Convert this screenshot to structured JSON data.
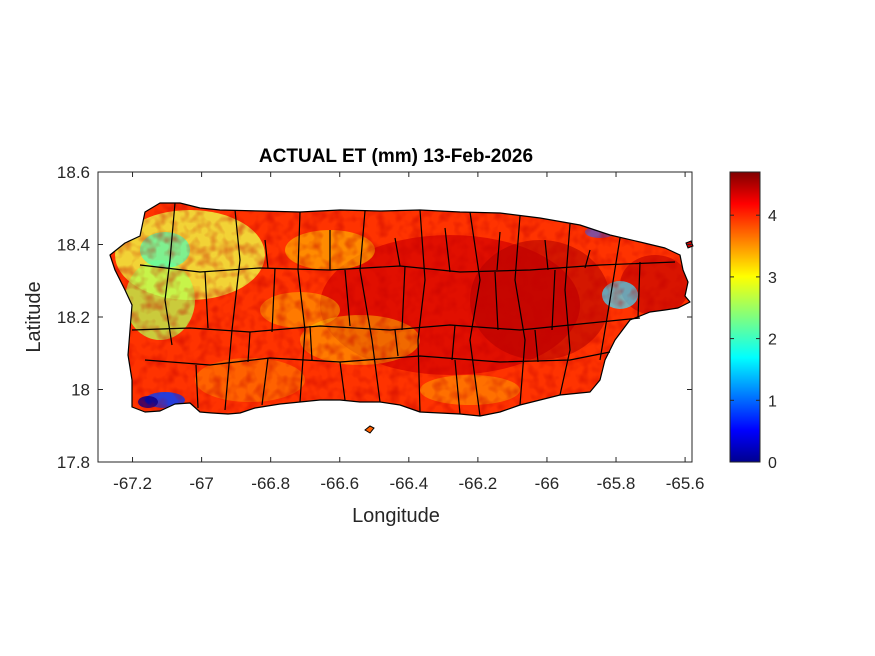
{
  "chart_data": {
    "type": "heatmap",
    "title": "ACTUAL ET (mm) 13-Feb-2026",
    "xlabel": "Longitude",
    "ylabel": "Latitude",
    "xlim": [
      -67.3,
      -65.58
    ],
    "ylim": [
      17.8,
      18.6
    ],
    "x_ticks": [
      -67.2,
      -67,
      -66.8,
      -66.6,
      -66.4,
      -66.2,
      -66,
      -65.8,
      -65.6
    ],
    "x_tick_labels": [
      "-67.2",
      "-67",
      "-66.8",
      "-66.6",
      "-66.4",
      "-66.2",
      "-66",
      "-65.8",
      "-65.6"
    ],
    "y_ticks": [
      17.8,
      18,
      18.2,
      18.4,
      18.6
    ],
    "y_tick_labels": [
      "17.8",
      "18",
      "18.2",
      "18.4",
      "18.6"
    ],
    "colorbar": {
      "colormap": "jet",
      "range": [
        0,
        4.7
      ],
      "ticks": [
        0,
        1,
        2,
        3,
        4
      ],
      "tick_labels": [
        "0",
        "1",
        "2",
        "3",
        "4"
      ]
    },
    "grid": false,
    "region": "Puerto Rico",
    "boundary_color": "#000000"
  }
}
